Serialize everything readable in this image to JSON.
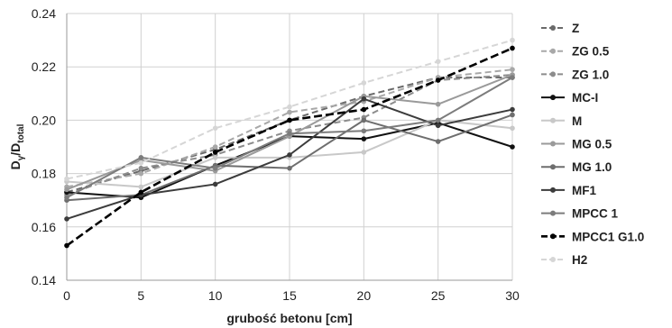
{
  "chart_data": {
    "type": "line",
    "xlabel": "grubość betonu [cm]",
    "ylabel_main": "D",
    "ylabel_sub1": "γ",
    "ylabel_mid": "/D",
    "ylabel_sub2": "total",
    "x": [
      0,
      5,
      10,
      15,
      20,
      25,
      30
    ],
    "xlim": [
      0,
      30
    ],
    "ylim": [
      0.14,
      0.24
    ],
    "xticks": [
      "0",
      "5",
      "10",
      "15",
      "20",
      "25",
      "30"
    ],
    "yticks": [
      "0.14",
      "0.16",
      "0.18",
      "0.20",
      "0.22",
      "0.24"
    ],
    "grid": true,
    "legend_position": "right",
    "series": [
      {
        "name": "Z",
        "values": [
          0.173,
          0.181,
          0.189,
          0.2,
          0.209,
          0.216,
          0.216
        ],
        "color": "#6a6a6a",
        "dash": "dashed",
        "width": 2
      },
      {
        "name": "ZG 0.5",
        "values": [
          0.175,
          0.18,
          0.19,
          0.203,
          0.207,
          0.216,
          0.219
        ],
        "color": "#a8a8a8",
        "dash": "dashed",
        "width": 2
      },
      {
        "name": "ZG 1.0",
        "values": [
          0.172,
          0.182,
          0.187,
          0.196,
          0.201,
          0.215,
          0.217
        ],
        "color": "#8c8c8c",
        "dash": "dashed",
        "width": 2
      },
      {
        "name": "MC-I",
        "values": [
          0.173,
          0.171,
          0.183,
          0.194,
          0.193,
          0.199,
          0.19
        ],
        "color": "#111111",
        "dash": "solid",
        "width": 2
      },
      {
        "name": "M",
        "values": [
          0.177,
          0.175,
          0.186,
          0.186,
          0.188,
          0.2,
          0.197
        ],
        "color": "#c8c8c8",
        "dash": "solid",
        "width": 2
      },
      {
        "name": "MG 0.5",
        "values": [
          0.174,
          0.185,
          0.181,
          0.194,
          0.209,
          0.206,
          0.217
        ],
        "color": "#9a9a9a",
        "dash": "solid",
        "width": 2
      },
      {
        "name": "MG 1.0",
        "values": [
          0.17,
          0.172,
          0.183,
          0.182,
          0.2,
          0.192,
          0.202
        ],
        "color": "#6e6e6e",
        "dash": "solid",
        "width": 2
      },
      {
        "name": "MF1",
        "values": [
          0.163,
          0.172,
          0.176,
          0.187,
          0.208,
          0.198,
          0.204
        ],
        "color": "#3c3c3c",
        "dash": "solid",
        "width": 2
      },
      {
        "name": "MPCC 1",
        "values": [
          0.171,
          0.186,
          0.182,
          0.195,
          0.196,
          0.2,
          0.216
        ],
        "color": "#7c7c7c",
        "dash": "solid",
        "width": 2
      },
      {
        "name": "MPCC1 G1.0",
        "values": [
          0.153,
          0.173,
          0.188,
          0.2,
          0.204,
          0.215,
          0.227
        ],
        "color": "#000000",
        "dash": "bold-dashed",
        "width": 2.6
      },
      {
        "name": "H2",
        "values": [
          0.178,
          0.184,
          0.197,
          0.205,
          0.214,
          0.222,
          0.23
        ],
        "color": "#d6d6d6",
        "dash": "dashed",
        "width": 2
      }
    ]
  }
}
